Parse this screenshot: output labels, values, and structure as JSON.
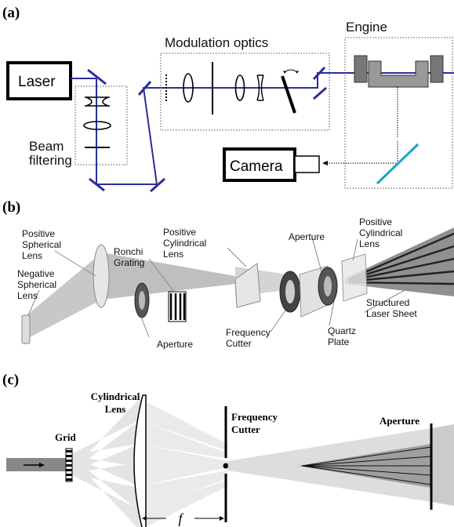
{
  "panels": {
    "a": {
      "label": "(a)",
      "laser": "Laser",
      "beam_filtering_1": "Beam",
      "beam_filtering_2": "filtering",
      "modulation_optics": "Modulation optics",
      "engine": "Engine",
      "camera": "Camera"
    },
    "b": {
      "label": "(b)",
      "positive_spherical": [
        "Positive",
        "Spherical",
        "Lens"
      ],
      "negative_spherical": [
        "Negative",
        "Spherical",
        "Lens"
      ],
      "ronchi": [
        "Ronchi",
        "Grating"
      ],
      "positive_cylindrical_1": [
        "Positive",
        "Cylindrical",
        "Lens"
      ],
      "aperture_top": "Aperture",
      "positive_cylindrical_2": [
        "Positive",
        "Cylindrical",
        "Lens"
      ],
      "aperture_bottom": "Aperture",
      "frequency_cutter": [
        "Frequency",
        "Cutter"
      ],
      "quartz": [
        "Quartz",
        "Plate"
      ],
      "structured": [
        "Structured",
        "Laser Sheet"
      ]
    },
    "c": {
      "label": "(c)",
      "cylindrical_lens": [
        "Cylindrical",
        "Lens"
      ],
      "grid": "Grid",
      "frequency_cutter": [
        "Frequency",
        "Cutter"
      ],
      "aperture": "Aperture",
      "focal": "f"
    }
  },
  "colors": {
    "beam": "#2a2f9a",
    "cyan_mirror": "#1aa3c6",
    "frame": "#000000"
  }
}
